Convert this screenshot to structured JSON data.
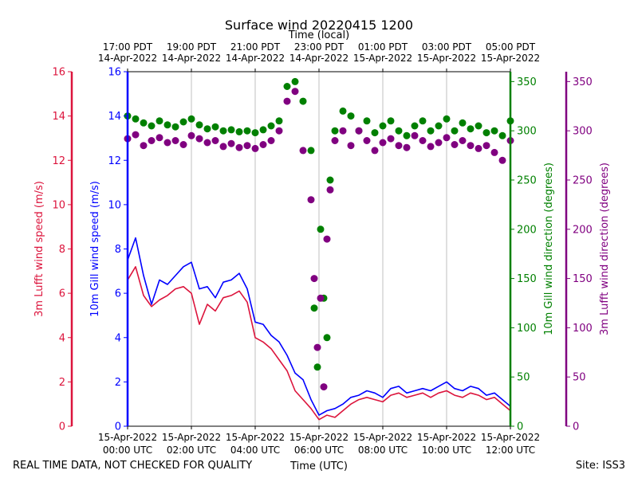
{
  "chart_data": {
    "type": "line",
    "title": "Surface wind 20220415 1200",
    "top_axis_label": "Time (local)",
    "xlabel": "Time (UTC)",
    "footer_left": "REAL TIME DATA, NOT CHECKED FOR QUALITY",
    "footer_right": "Site: ISS3",
    "x_range_hours": [
      0,
      12
    ],
    "top_ticks": [
      {
        "hour": 0,
        "line1": "17:00 PDT",
        "line2": "14-Apr-2022"
      },
      {
        "hour": 2,
        "line1": "19:00 PDT",
        "line2": "14-Apr-2022"
      },
      {
        "hour": 4,
        "line1": "21:00 PDT",
        "line2": "14-Apr-2022"
      },
      {
        "hour": 6,
        "line1": "23:00 PDT",
        "line2": "14-Apr-2022"
      },
      {
        "hour": 8,
        "line1": "01:00 PDT",
        "line2": "15-Apr-2022"
      },
      {
        "hour": 10,
        "line1": "03:00 PDT",
        "line2": "15-Apr-2022"
      },
      {
        "hour": 12,
        "line1": "05:00 PDT",
        "line2": "15-Apr-2022"
      }
    ],
    "bottom_ticks": [
      {
        "hour": 0,
        "line1": "15-Apr-2022",
        "line2": "00:00 UTC"
      },
      {
        "hour": 2,
        "line1": "15-Apr-2022",
        "line2": "02:00 UTC"
      },
      {
        "hour": 4,
        "line1": "15-Apr-2022",
        "line2": "04:00 UTC"
      },
      {
        "hour": 6,
        "line1": "15-Apr-2022",
        "line2": "06:00 UTC"
      },
      {
        "hour": 8,
        "line1": "15-Apr-2022",
        "line2": "08:00 UTC"
      },
      {
        "hour": 10,
        "line1": "15-Apr-2022",
        "line2": "10:00 UTC"
      },
      {
        "hour": 12,
        "line1": "15-Apr-2022",
        "line2": "12:00 UTC"
      }
    ],
    "axes": [
      {
        "id": "lufft_speed",
        "label": "3m Lufft wind speed (m/s)",
        "color": "#dc143c",
        "range": [
          0,
          16
        ],
        "ticks": [
          0,
          2,
          4,
          6,
          8,
          10,
          12,
          14,
          16
        ]
      },
      {
        "id": "gill_speed",
        "label": "10m Gill wind speed (m/s)",
        "color": "#0000ff",
        "range": [
          0,
          16
        ],
        "ticks": [
          0,
          2,
          4,
          6,
          8,
          10,
          12,
          14,
          16
        ]
      },
      {
        "id": "gill_dir",
        "label": "10m Gill wind direction (degrees)",
        "color": "#008000",
        "range": [
          0,
          360
        ],
        "ticks": [
          0,
          50,
          100,
          150,
          200,
          250,
          300,
          350
        ]
      },
      {
        "id": "lufft_dir",
        "label": "3m Lufft wind direction (degrees)",
        "color": "#800080",
        "range": [
          0,
          360
        ],
        "ticks": [
          0,
          50,
          100,
          150,
          200,
          250,
          300,
          350
        ]
      }
    ],
    "series": [
      {
        "name": "10m Gill wind speed",
        "axis": "gill_speed",
        "kind": "line",
        "color": "#0000ff",
        "x": [
          0,
          0.25,
          0.5,
          0.75,
          1,
          1.25,
          1.5,
          1.75,
          2,
          2.25,
          2.5,
          2.75,
          3,
          3.25,
          3.5,
          3.75,
          4,
          4.25,
          4.5,
          4.75,
          5,
          5.25,
          5.5,
          5.75,
          6,
          6.25,
          6.5,
          6.75,
          7,
          7.25,
          7.5,
          7.75,
          8,
          8.25,
          8.5,
          8.75,
          9,
          9.25,
          9.5,
          9.75,
          10,
          10.25,
          10.5,
          10.75,
          11,
          11.25,
          11.5,
          11.75,
          12
        ],
        "y": [
          7.5,
          8.5,
          6.8,
          5.5,
          6.6,
          6.4,
          6.8,
          7.2,
          7.4,
          6.2,
          6.3,
          5.8,
          6.5,
          6.6,
          6.9,
          6.2,
          4.7,
          4.6,
          4.1,
          3.8,
          3.2,
          2.4,
          2.1,
          1.2,
          0.5,
          0.7,
          0.8,
          1.0,
          1.3,
          1.4,
          1.6,
          1.5,
          1.3,
          1.7,
          1.8,
          1.5,
          1.6,
          1.7,
          1.6,
          1.8,
          2.0,
          1.7,
          1.6,
          1.8,
          1.7,
          1.4,
          1.5,
          1.2,
          0.9
        ]
      },
      {
        "name": "3m Lufft wind speed",
        "axis": "lufft_speed",
        "kind": "line",
        "color": "#dc143c",
        "x": [
          0,
          0.25,
          0.5,
          0.75,
          1,
          1.25,
          1.5,
          1.75,
          2,
          2.25,
          2.5,
          2.75,
          3,
          3.25,
          3.5,
          3.75,
          4,
          4.25,
          4.5,
          4.75,
          5,
          5.25,
          5.5,
          5.75,
          6,
          6.25,
          6.5,
          6.75,
          7,
          7.25,
          7.5,
          7.75,
          8,
          8.25,
          8.5,
          8.75,
          9,
          9.25,
          9.5,
          9.75,
          10,
          10.25,
          10.5,
          10.75,
          11,
          11.25,
          11.5,
          11.75,
          12
        ],
        "y": [
          6.6,
          7.2,
          5.9,
          5.4,
          5.7,
          5.9,
          6.2,
          6.3,
          6.0,
          4.6,
          5.5,
          5.2,
          5.8,
          5.9,
          6.1,
          5.6,
          4.0,
          3.8,
          3.5,
          3.0,
          2.5,
          1.6,
          1.2,
          0.8,
          0.3,
          0.5,
          0.4,
          0.7,
          1.0,
          1.2,
          1.3,
          1.2,
          1.1,
          1.4,
          1.5,
          1.3,
          1.4,
          1.5,
          1.3,
          1.5,
          1.6,
          1.4,
          1.3,
          1.5,
          1.4,
          1.2,
          1.3,
          1.0,
          0.7
        ]
      },
      {
        "name": "10m Gill wind direction",
        "axis": "gill_dir",
        "kind": "scatter",
        "color": "#008000",
        "x": [
          0,
          0.25,
          0.5,
          0.75,
          1,
          1.25,
          1.5,
          1.75,
          2,
          2.25,
          2.5,
          2.75,
          3,
          3.25,
          3.5,
          3.75,
          4,
          4.25,
          4.5,
          4.75,
          5,
          5.25,
          5.5,
          5.75,
          5.85,
          5.95,
          6.05,
          6.15,
          6.25,
          6.35,
          6.5,
          6.75,
          7,
          7.25,
          7.5,
          7.75,
          8,
          8.25,
          8.5,
          8.75,
          9,
          9.25,
          9.5,
          9.75,
          10,
          10.25,
          10.5,
          10.75,
          11,
          11.25,
          11.5,
          11.75,
          12
        ],
        "y": [
          315,
          312,
          308,
          305,
          310,
          306,
          304,
          309,
          312,
          306,
          302,
          304,
          300,
          301,
          299,
          300,
          298,
          301,
          305,
          310,
          345,
          350,
          330,
          280,
          120,
          60,
          200,
          130,
          90,
          250,
          300,
          320,
          315,
          300,
          310,
          298,
          305,
          310,
          300,
          295,
          305,
          310,
          300,
          305,
          312,
          300,
          308,
          302,
          305,
          298,
          300,
          295,
          310
        ]
      },
      {
        "name": "3m Lufft wind direction",
        "axis": "lufft_dir",
        "kind": "scatter",
        "color": "#800080",
        "x": [
          0,
          0.25,
          0.5,
          0.75,
          1,
          1.25,
          1.5,
          1.75,
          2,
          2.25,
          2.5,
          2.75,
          3,
          3.25,
          3.5,
          3.75,
          4,
          4.25,
          4.5,
          4.75,
          5,
          5.25,
          5.5,
          5.75,
          5.85,
          5.95,
          6.05,
          6.15,
          6.25,
          6.35,
          6.5,
          6.75,
          7,
          7.25,
          7.5,
          7.75,
          8,
          8.25,
          8.5,
          8.75,
          9,
          9.25,
          9.5,
          9.75,
          10,
          10.25,
          10.5,
          10.75,
          11,
          11.25,
          11.5,
          11.75,
          12
        ],
        "y": [
          292,
          296,
          285,
          290,
          293,
          288,
          290,
          286,
          295,
          292,
          288,
          290,
          284,
          287,
          283,
          285,
          282,
          286,
          290,
          300,
          330,
          340,
          280,
          230,
          150,
          80,
          130,
          40,
          190,
          240,
          290,
          300,
          285,
          300,
          290,
          280,
          288,
          292,
          285,
          283,
          295,
          290,
          284,
          288,
          293,
          286,
          290,
          285,
          282,
          285,
          278,
          270,
          290
        ]
      }
    ]
  }
}
